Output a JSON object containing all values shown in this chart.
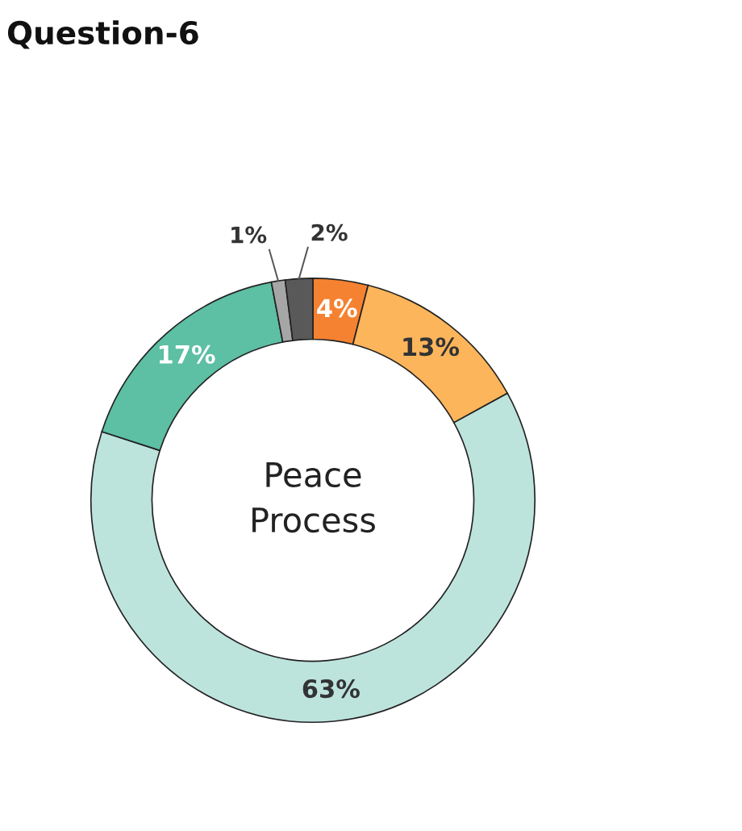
{
  "chart_data": {
    "type": "donut",
    "title": "Question-6",
    "annotations": [
      "Peace Process"
    ],
    "categories": [
      null,
      null,
      null,
      null,
      null,
      null
    ],
    "values": [
      4,
      13,
      63,
      17,
      1,
      2
    ],
    "colors": [
      "#f58231",
      "#fdb55b",
      "#bde3dd",
      "#5dbfa3",
      "#a6a6a6",
      "#595959"
    ],
    "value_labels": [
      "4%",
      "13%",
      "63%",
      "17%",
      "1%",
      "2%"
    ],
    "legend": false
  }
}
